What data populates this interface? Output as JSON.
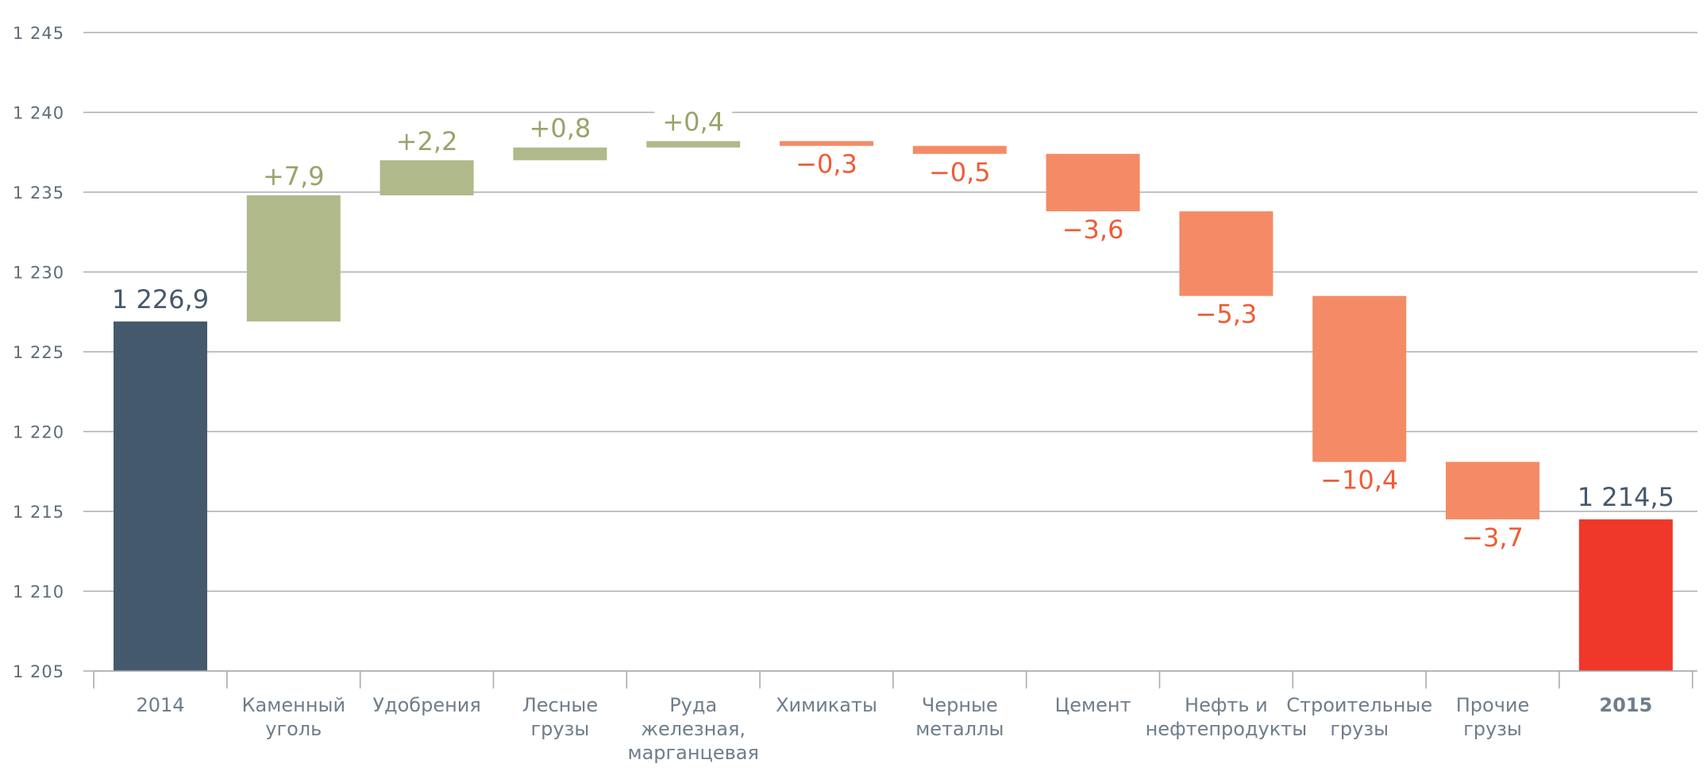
{
  "chart_data": {
    "type": "waterfall",
    "title": "",
    "xlabel": "",
    "ylabel": "",
    "ylim": [
      1205,
      1245
    ],
    "y_ticks": [
      "1 205",
      "1 210",
      "1 215",
      "1 220",
      "1 225",
      "1 230",
      "1 235",
      "1 240",
      "1 245"
    ],
    "y_tick_values": [
      1205,
      1210,
      1215,
      1220,
      1225,
      1230,
      1235,
      1240,
      1245
    ],
    "grid": true,
    "categories": [
      [
        "2014"
      ],
      [
        "Каменный",
        "уголь"
      ],
      [
        "Удобрения"
      ],
      [
        "Лесные",
        "грузы"
      ],
      [
        "Руда",
        "железная,",
        "марганцевая"
      ],
      [
        "Химикаты"
      ],
      [
        "Черные",
        "металлы"
      ],
      [
        "Цемент"
      ],
      [
        "Нефть и",
        "нефтепродукты"
      ],
      [
        "Строительные",
        "грузы"
      ],
      [
        "Прочие",
        "грузы"
      ],
      [
        "2015"
      ]
    ],
    "bars": [
      {
        "kind": "total",
        "start": 1205,
        "end": 1226.9,
        "label": "1 226,9",
        "color": "#45596d"
      },
      {
        "kind": "increase",
        "start": 1226.9,
        "end": 1234.8,
        "label": "+7,9",
        "color": "#b0b98a"
      },
      {
        "kind": "increase",
        "start": 1234.8,
        "end": 1237.0,
        "label": "+2,2",
        "color": "#b0b98a"
      },
      {
        "kind": "increase",
        "start": 1237.0,
        "end": 1237.8,
        "label": "+0,8",
        "color": "#b0b98a"
      },
      {
        "kind": "increase",
        "start": 1237.8,
        "end": 1238.2,
        "label": "+0,4",
        "color": "#b0b98a"
      },
      {
        "kind": "decrease",
        "start": 1238.2,
        "end": 1237.9,
        "label": "−0,3",
        "color": "#f48b66"
      },
      {
        "kind": "decrease",
        "start": 1237.9,
        "end": 1237.4,
        "label": "−0,5",
        "color": "#f48b66"
      },
      {
        "kind": "decrease",
        "start": 1237.4,
        "end": 1233.8,
        "label": "−3,6",
        "color": "#f48b66"
      },
      {
        "kind": "decrease",
        "start": 1233.8,
        "end": 1228.5,
        "label": "−5,3",
        "color": "#f48b66"
      },
      {
        "kind": "decrease",
        "start": 1228.5,
        "end": 1218.1,
        "label": "−10,4",
        "color": "#f48b66"
      },
      {
        "kind": "decrease",
        "start": 1218.1,
        "end": 1214.5,
        "label": "−3,7",
        "color": "#f48b66"
      },
      {
        "kind": "total",
        "start": 1205,
        "end": 1214.5,
        "label": "1 214,5",
        "color": "#ef3829"
      }
    ],
    "colors": {
      "total_start": "#45596d",
      "total_end": "#ef3829",
      "increase": "#b0b98a",
      "decrease": "#f48b66",
      "increase_label": "#9aa36a",
      "decrease_label": "#ee5c36",
      "total_label": "#45596d",
      "grid": "#a7adb3",
      "tick_text": "#6f7d8b"
    }
  }
}
